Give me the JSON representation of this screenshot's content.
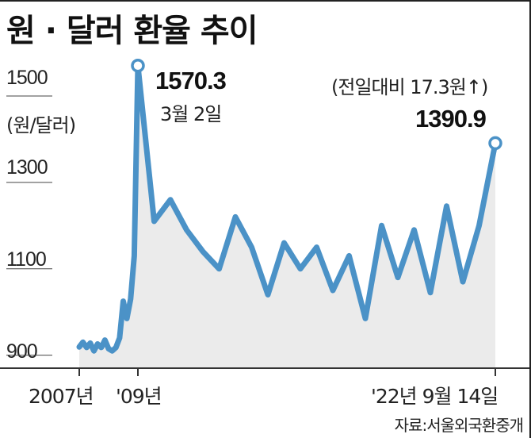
{
  "chart_data": {
    "type": "line",
    "title": "원 · 달러 환율 추이",
    "ylabel": "(원/달러)",
    "ylim": [
      870,
      1590
    ],
    "yticks": [
      1500,
      1300,
      1100,
      900
    ],
    "xticks": [
      "2007년",
      "'09년",
      "'22년 9월 14일"
    ],
    "grid": false,
    "series": [
      {
        "values": [
          919,
          930,
          918,
          928,
          910,
          926,
          918,
          935,
          915,
          910,
          918,
          940,
          1025,
          985,
          1030,
          1130,
          1570.3,
          1210,
          1260,
          1190,
          1140,
          1100,
          1220,
          1150,
          1040,
          1160,
          1100,
          1150,
          1050,
          1130,
          985,
          1200,
          1080,
          1190,
          1045,
          1245,
          1070,
          1200,
          1390.9
        ]
      }
    ],
    "annotations": {
      "peak": {
        "value": "1570.3",
        "date": "3월 2일"
      },
      "latest": {
        "value": "1390.9",
        "change": "(전일대비 17.3원↑)"
      }
    },
    "source": "자료:서울외국환중개"
  },
  "colors": {
    "line": "#4b92c7",
    "area": "#ebebeb",
    "axis": "#333333",
    "marker_fill": "#ffffff"
  }
}
